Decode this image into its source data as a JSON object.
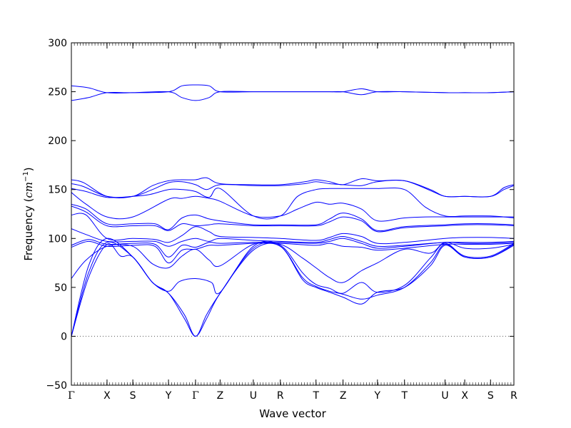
{
  "chart_data": {
    "type": "line",
    "xlabel": "Wave vector",
    "ylabel": "Frequency (cm⁻¹)",
    "ylabel_prefix": "Frequency (",
    "ylabel_unit": "cm",
    "ylabel_exp": "−1",
    "ylabel_suffix": ")",
    "ylim": [
      -50,
      300
    ],
    "yticks": [
      -50,
      0,
      50,
      100,
      150,
      200,
      250,
      300
    ],
    "xlim": [
      0,
      18
    ],
    "grid": false,
    "zero_line": 0,
    "line_color": "#0000ff",
    "high_symmetry_points": [
      {
        "label": "Γ",
        "x": 0
      },
      {
        "label": "X",
        "x": 1.45
      },
      {
        "label": "S",
        "x": 2.5
      },
      {
        "label": "Y",
        "x": 3.95
      },
      {
        "label": "Γ",
        "x": 5.05
      },
      {
        "label": "Z",
        "x": 6.05
      },
      {
        "label": "U",
        "x": 7.4
      },
      {
        "label": "R",
        "x": 8.5
      },
      {
        "label": "T",
        "x": 9.95
      },
      {
        "label": "Z",
        "x": 11.05
      },
      {
        "label": "Y",
        "x": 12.45
      },
      {
        "label": "T",
        "x": 13.55
      },
      {
        "label": "U",
        "x": 15.2
      },
      {
        "label": "X",
        "x": 16.0
      },
      {
        "label": "S",
        "x": 17.05
      },
      {
        "label": "R",
        "x": 18.0
      }
    ],
    "series": [
      {
        "x": [
          0,
          0.7,
          1.45,
          2.5,
          3.95,
          4.5,
          5.05,
          5.6,
          6.05,
          7.4,
          8.5,
          9.95,
          10.5,
          11.05,
          11.8,
          12.45,
          13.55,
          15.2,
          16.0,
          17.05,
          18.0
        ],
        "y": [
          256,
          254,
          249,
          249,
          250,
          256,
          257,
          256,
          250,
          250,
          250,
          250,
          250,
          250,
          253,
          250,
          250,
          249,
          249,
          249,
          250
        ]
      },
      {
        "x": [
          0,
          0.7,
          1.45,
          2.5,
          3.95,
          4.5,
          5.05,
          5.6,
          6.05,
          7.4,
          8.5,
          9.95,
          10.5,
          11.05,
          11.8,
          12.45,
          13.55,
          15.2,
          16.0,
          17.05,
          18.0
        ],
        "y": [
          241,
          244,
          249,
          249,
          250,
          244,
          241,
          244,
          250,
          250,
          250,
          250,
          250,
          250,
          247,
          250,
          250,
          249,
          249,
          249,
          250
        ]
      },
      {
        "x": [
          0,
          0.5,
          1.45,
          2.5,
          3.3,
          3.95,
          4.5,
          5.05,
          5.5,
          6.05,
          7.4,
          8.5,
          9.5,
          9.95,
          10.5,
          11.05,
          11.8,
          12.45,
          13.55,
          14.6,
          15.2,
          16.0,
          17.05,
          17.6,
          18.0
        ],
        "y": [
          160,
          157,
          143,
          143,
          154,
          159,
          160,
          160,
          162,
          156,
          155,
          155,
          158,
          160,
          158,
          155,
          161,
          159,
          159,
          149,
          143,
          143,
          143,
          152,
          155
        ]
      },
      {
        "x": [
          0,
          0.5,
          1.45,
          2.5,
          3.3,
          3.95,
          4.5,
          5.05,
          5.5,
          6.05,
          7.4,
          8.5,
          9.5,
          9.95,
          10.5,
          11.05,
          11.8,
          12.45,
          13.55,
          14.6,
          15.2,
          16.0,
          17.05,
          17.6,
          18.0
        ],
        "y": [
          156,
          153,
          143,
          143,
          150,
          157,
          158,
          155,
          150,
          155,
          154,
          154,
          156,
          158,
          156,
          155,
          154,
          158,
          159,
          150,
          143,
          143,
          143,
          150,
          154
        ]
      },
      {
        "x": [
          0,
          0.6,
          1.45,
          2.5,
          3.2,
          3.95,
          4.5,
          5.05,
          5.6,
          6.05,
          7.4,
          8.5,
          9.2,
          9.95,
          10.5,
          11.05,
          11.8,
          12.45,
          13.55,
          14.4,
          15.2,
          16.0,
          17.05,
          17.6,
          18.0
        ],
        "y": [
          151,
          148,
          142,
          143,
          145,
          150,
          150,
          148,
          142,
          151,
          123,
          123,
          143,
          150,
          151,
          151,
          151,
          151,
          150,
          132,
          123,
          123,
          123,
          122,
          121
        ]
      },
      {
        "x": [
          0,
          0.6,
          1.45,
          2.5,
          3.95,
          4.5,
          5.05,
          5.6,
          6.05,
          7.4,
          8.5,
          9.2,
          9.95,
          10.5,
          11.05,
          11.8,
          12.45,
          13.55,
          14.4,
          15.2,
          16.0,
          17.05,
          18.0
        ],
        "y": [
          147,
          135,
          122,
          122,
          140,
          141,
          143,
          141,
          138,
          123,
          123,
          130,
          137,
          135,
          136,
          130,
          118,
          121,
          122,
          122,
          122,
          122,
          122
        ]
      },
      {
        "x": [
          0,
          0.6,
          1.45,
          2.5,
          3.4,
          3.95,
          4.5,
          5.05,
          5.6,
          6.05,
          7.4,
          8.5,
          9.95,
          10.5,
          11.05,
          11.8,
          12.45,
          13.55,
          15.2,
          16.0,
          17.05,
          18.0
        ],
        "y": [
          135,
          130,
          115,
          115,
          115,
          109,
          121,
          124,
          120,
          118,
          114,
          114,
          114,
          120,
          126,
          120,
          108,
          112,
          114,
          115,
          115,
          114
        ]
      },
      {
        "x": [
          0,
          0.6,
          1.45,
          2.5,
          3.4,
          3.95,
          4.5,
          5.05,
          5.6,
          6.05,
          7.4,
          8.5,
          9.95,
          10.5,
          11.05,
          11.8,
          12.45,
          13.55,
          15.2,
          16.0,
          17.05,
          18.0
        ],
        "y": [
          133,
          127,
          113,
          113,
          113,
          108,
          115,
          113,
          114,
          115,
          113,
          113,
          113,
          117,
          122,
          118,
          107,
          111,
          113,
          114,
          114,
          113
        ]
      },
      {
        "x": [
          0,
          0.6,
          1.45,
          2.5,
          3.4,
          3.95,
          4.5,
          5.05,
          5.6,
          6.05,
          7.4,
          8.5,
          9.95,
          10.5,
          11.05,
          11.8,
          12.45,
          13.55,
          15.2,
          16.0,
          17.05,
          18.0
        ],
        "y": [
          124,
          124,
          100,
          100,
          99,
          96,
          103,
          112,
          107,
          102,
          101,
          100,
          98,
          101,
          105,
          102,
          95,
          96,
          100,
          101,
          101,
          100
        ]
      },
      {
        "x": [
          0,
          0.6,
          1.45,
          2.5,
          3.4,
          3.95,
          4.5,
          5.05,
          5.6,
          6.05,
          7.4,
          8.5,
          9.95,
          10.5,
          11.05,
          11.8,
          12.45,
          13.55,
          15.2,
          16.0,
          17.05,
          18.0
        ],
        "y": [
          110,
          104,
          97,
          97,
          97,
          92,
          97,
          100,
          97,
          100,
          98,
          97,
          96,
          99,
          102,
          97,
          92,
          93,
          96,
          96,
          96,
          97
        ]
      },
      {
        "x": [
          0,
          0.7,
          1.45,
          2.5,
          3.4,
          3.95,
          4.5,
          5.05,
          5.6,
          6.05,
          7.4,
          8.5,
          9.95,
          10.5,
          11.05,
          11.8,
          12.45,
          13.55,
          15.2,
          16.0,
          17.05,
          18.0
        ],
        "y": [
          93,
          99,
          94,
          95,
          94,
          81,
          93,
          91,
          96,
          95,
          96,
          96,
          95,
          97,
          100,
          95,
          90,
          92,
          96,
          95,
          95,
          96
        ]
      },
      {
        "x": [
          0,
          0.7,
          1.45,
          2.5,
          3.4,
          3.95,
          4.5,
          5.05,
          5.6,
          6.05,
          7.4,
          8.5,
          9.95,
          10.5,
          11.05,
          11.8,
          12.45,
          13.55,
          15.2,
          16.0,
          17.05,
          18.0
        ],
        "y": [
          91,
          97,
          92,
          93,
          92,
          75,
          88,
          89,
          93,
          93,
          95,
          95,
          93,
          95,
          92,
          91,
          88,
          90,
          94,
          94,
          94,
          95
        ]
      },
      {
        "x": [
          0,
          0.6,
          1.45,
          2.5,
          3.3,
          3.95,
          4.5,
          5.05,
          5.6,
          6.05,
          7.4,
          8.5,
          9.4,
          9.95,
          10.5,
          11.05,
          11.8,
          12.45,
          13.55,
          14.6,
          15.2,
          16.0,
          17.05,
          18.0
        ],
        "y": [
          59,
          78,
          92,
          92,
          74,
          70,
          82,
          89,
          78,
          72,
          94,
          94,
          80,
          70,
          60,
          55,
          67,
          75,
          89,
          85,
          96,
          90,
          90,
          94
        ]
      },
      {
        "x": [
          0,
          0.7,
          1.45,
          2.5,
          3.3,
          3.95,
          4.4,
          5.05,
          5.7,
          6.05,
          7.4,
          8.5,
          9.4,
          9.95,
          10.5,
          11.05,
          11.8,
          12.45,
          13.55,
          14.6,
          15.2,
          16.0,
          17.05,
          18.0
        ],
        "y": [
          0,
          72,
          100,
          81,
          55,
          46,
          56,
          59,
          55,
          45,
          92,
          93,
          65,
          53,
          49,
          44,
          55,
          45,
          52,
          80,
          95,
          82,
          82,
          95
        ]
      },
      {
        "x": [
          0,
          0.7,
          1.45,
          2.5,
          3.3,
          3.95,
          4.6,
          5.05,
          5.5,
          6.05,
          7.4,
          8.5,
          9.4,
          9.95,
          10.5,
          11.05,
          11.8,
          12.45,
          13.55,
          14.6,
          15.2,
          16.0,
          17.05,
          18.0
        ],
        "y": [
          0,
          65,
          96,
          81,
          55,
          44,
          22,
          0,
          22,
          44,
          90,
          92,
          60,
          51,
          46,
          43,
          38,
          42,
          50,
          75,
          94,
          81,
          81,
          94
        ]
      },
      {
        "x": [
          0,
          0.7,
          1.45,
          2.0,
          2.5,
          3.3,
          3.95,
          4.6,
          5.05,
          5.5,
          6.05,
          7.4,
          8.5,
          9.4,
          9.95,
          10.5,
          11.05,
          11.8,
          12.45,
          13.55,
          14.6,
          15.2,
          16.0,
          17.05,
          18.0
        ],
        "y": [
          0,
          60,
          94,
          82,
          81,
          55,
          44,
          18,
          0,
          18,
          44,
          88,
          92,
          58,
          50,
          45,
          40,
          33,
          45,
          50,
          72,
          93,
          81,
          81,
          93
        ]
      }
    ]
  }
}
